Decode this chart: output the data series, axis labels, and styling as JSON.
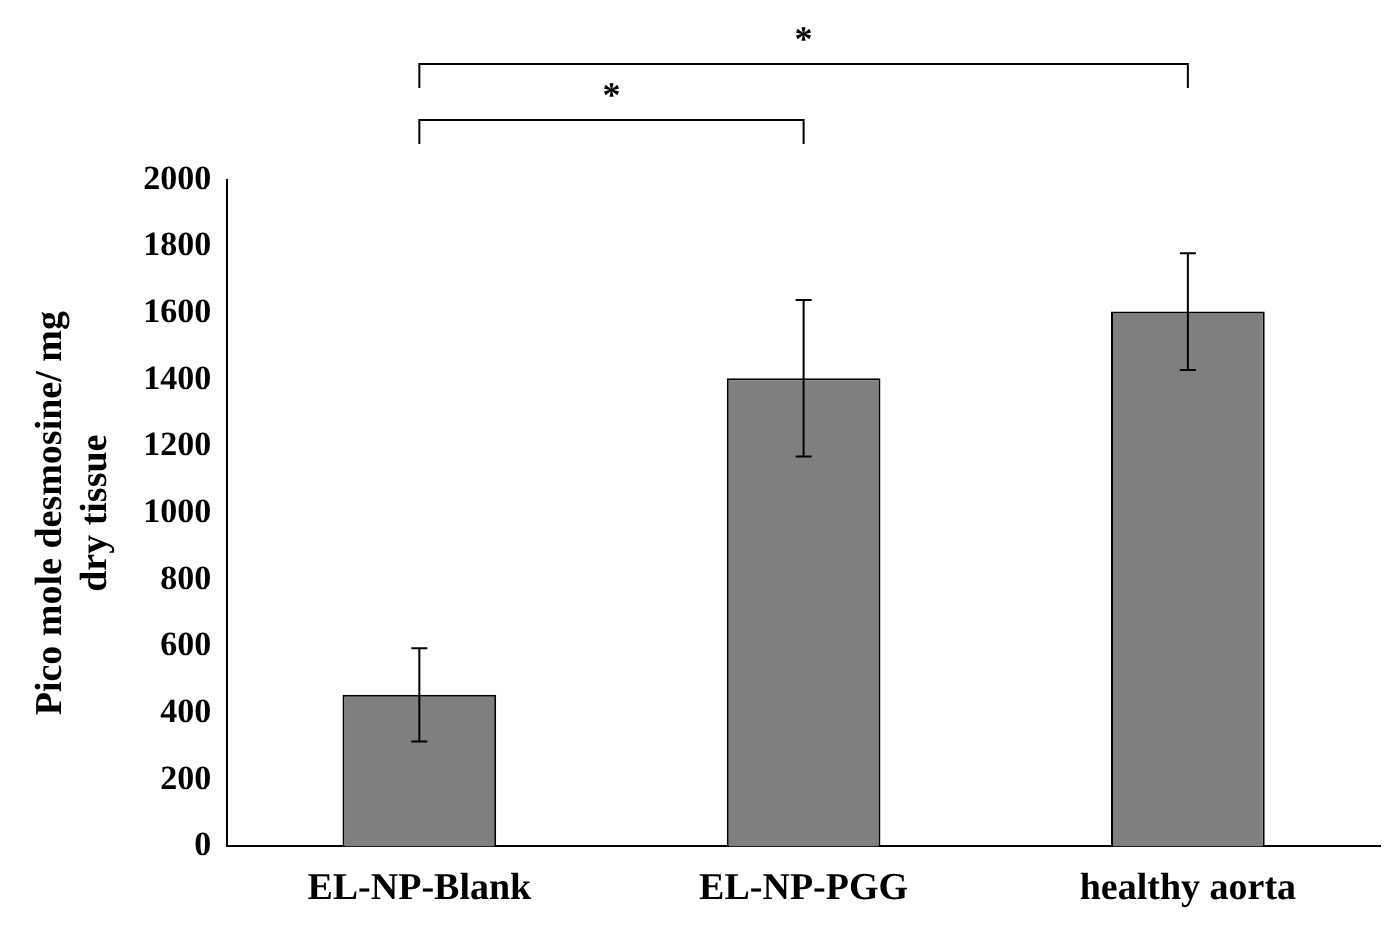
{
  "chart_data": {
    "type": "bar",
    "ylabel": "Pico mole desmosine/ mg\ndry tissue",
    "categories": [
      "EL-NP-Blank",
      "EL-NP-PGG",
      "healthy aorta"
    ],
    "values": [
      455,
      1405,
      1605
    ],
    "errors": [
      140,
      235,
      175
    ],
    "color": "#7f7f7f",
    "ylim": [
      0,
      2000
    ],
    "yticks": [
      0,
      200,
      400,
      600,
      800,
      1000,
      1200,
      1400,
      1600,
      1800,
      2000
    ],
    "grid": false,
    "legend": false,
    "annotations": [
      "*",
      "*"
    ]
  }
}
